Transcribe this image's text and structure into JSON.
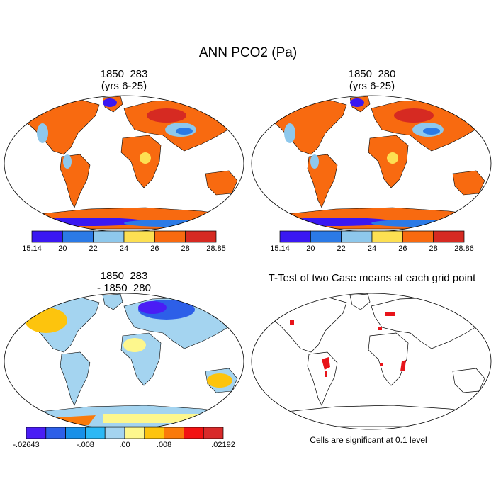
{
  "title": "ANN PCO2 (Pa)",
  "panels": [
    {
      "title": "1850_283\n(yrs 6-25)"
    },
    {
      "title": "1850_280\n(yrs 6-25)"
    },
    {
      "title": "1850_283\n- 1850_280"
    },
    {
      "title": "T-Test of two Case means at each grid point"
    }
  ],
  "colorbars": [
    {
      "colors": [
        "#3a18f2",
        "#2b7ae6",
        "#8ec8ec",
        "#fde052",
        "#f86a10",
        "#d62a22"
      ],
      "labels": [
        "15.14",
        "20",
        "22",
        "24",
        "26",
        "28",
        "28.85"
      ]
    },
    {
      "colors": [
        "#3a18f2",
        "#2b7ae6",
        "#8ec8ec",
        "#fde052",
        "#f86a10",
        "#d62a22"
      ],
      "labels": [
        "15.14",
        "20",
        "22",
        "24",
        "26",
        "28",
        "28.86"
      ]
    },
    {
      "colors": [
        "#4a1df5",
        "#2d5fe8",
        "#1890e8",
        "#2cb8f5",
        "#a4d4f0",
        "#fdf78d",
        "#fdc40d",
        "#fa7a0a",
        "#f21212",
        "#d82a2a"
      ],
      "labels": [
        "-.02643",
        "-.008",
        ".00",
        ".008",
        ".02192"
      ]
    }
  ],
  "significance_note": "Cells are significant at 0.1 level",
  "colors": {
    "land_fill_a": "#f86a10",
    "land_fill_b": "#f86a10",
    "land_diff": "#a4d4f0",
    "significant": "#e8141a"
  }
}
